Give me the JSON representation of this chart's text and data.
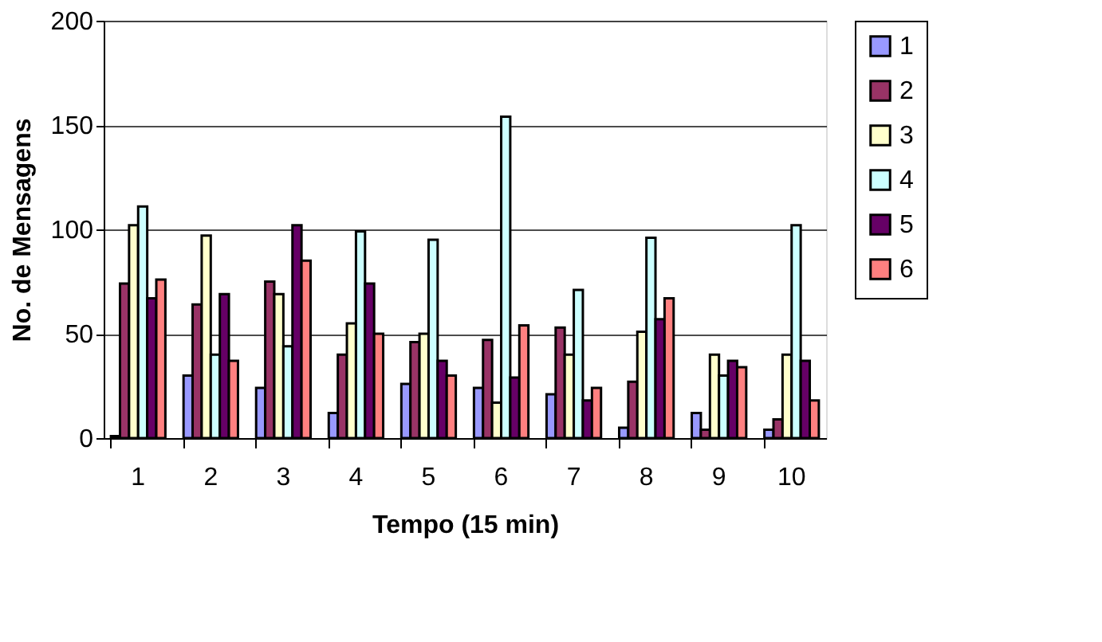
{
  "chart_data": {
    "type": "bar",
    "xlabel": "Tempo (15 min)",
    "ylabel": "No. de Mensagens",
    "categories": [
      "1",
      "2",
      "3",
      "4",
      "5",
      "6",
      "7",
      "8",
      "9",
      "10"
    ],
    "series": [
      {
        "name": "1",
        "color": "#9999ff",
        "values": [
          1,
          30,
          24,
          12,
          26,
          24,
          21,
          5,
          12,
          4
        ]
      },
      {
        "name": "2",
        "color": "#993366",
        "values": [
          74,
          64,
          75,
          40,
          46,
          47,
          53,
          27,
          4,
          9
        ]
      },
      {
        "name": "3",
        "color": "#ffffcc",
        "values": [
          102,
          97,
          69,
          55,
          50,
          17,
          40,
          51,
          40,
          40
        ]
      },
      {
        "name": "4",
        "color": "#ccffff",
        "values": [
          111,
          40,
          44,
          99,
          95,
          154,
          71,
          96,
          30,
          102
        ]
      },
      {
        "name": "5",
        "color": "#660066",
        "values": [
          67,
          69,
          102,
          74,
          37,
          29,
          18,
          57,
          37,
          37
        ]
      },
      {
        "name": "6",
        "color": "#ff8080",
        "values": [
          76,
          37,
          85,
          50,
          30,
          54,
          24,
          67,
          34,
          18
        ]
      }
    ],
    "ylim": [
      0,
      200
    ],
    "yticks": [
      0,
      50,
      100,
      150,
      200
    ],
    "grid": "y",
    "legend": "right"
  }
}
